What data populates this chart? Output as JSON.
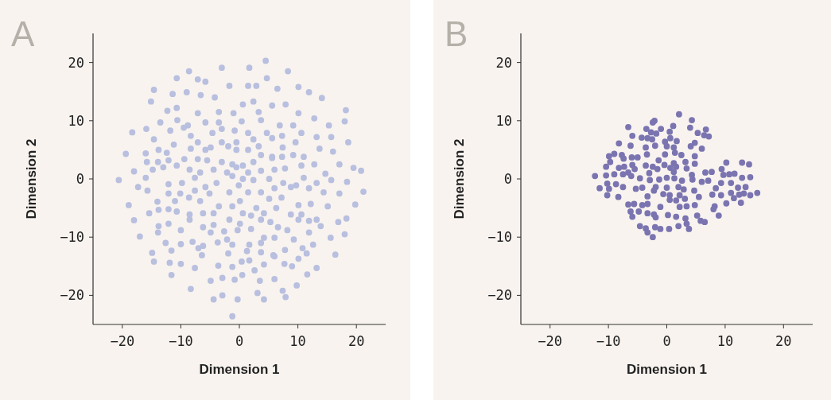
{
  "chart_data": [
    {
      "type": "scatter",
      "title": "A",
      "xlabel": "Dimension 1",
      "ylabel": "Dimension 2",
      "xlim": [
        -25,
        25
      ],
      "ylim": [
        -25,
        25
      ],
      "marker": "circle",
      "xticks": [
        -20,
        -10,
        0,
        10,
        20
      ],
      "yticks": [
        -20,
        -10,
        0,
        10,
        20
      ],
      "series": [
        {
          "color": "#b8bfdf",
          "x": [
            4.5,
            -3.0,
            1.7,
            -8.6,
            8.3,
            -10.7,
            -7.1,
            -5.8,
            4.7,
            -1.7,
            1.5,
            2.9,
            6.5,
            -14.6,
            10.1,
            11.9,
            14.1,
            -9.0,
            -6.6,
            -11.4,
            -15.1,
            -4.2,
            0.6,
            2.4,
            5.6,
            7.9,
            -12.3,
            -10.7,
            -7.1,
            -3.5,
            -1.0,
            3.3,
            10.1,
            12.8,
            18.2,
            -13.5,
            -10.6,
            -8.8,
            -5.8,
            -3.5,
            0.4,
            3.7,
            6.9,
            9.2,
            15.3,
            18.0,
            -18.3,
            -15.9,
            -11.8,
            -9.5,
            -4.6,
            -3.0,
            -0.8,
            1.5,
            4.7,
            7.3,
            10.6,
            13.2,
            15.7,
            -14.6,
            -11.2,
            -8.3,
            -7.1,
            -3.0,
            -0.5,
            2.4,
            5.6,
            9.6,
            18.6,
            -19.4,
            -16.0,
            -13.8,
            -12.4,
            -8.3,
            -5.8,
            -4.9,
            -1.9,
            -0.5,
            1.5,
            3.3,
            5.6,
            7.4,
            9.2,
            11.0,
            13.7,
            16.0,
            -15.8,
            -13.9,
            -12.1,
            -9.4,
            -7.1,
            -5.5,
            -3.0,
            -1.2,
            0.6,
            2.4,
            3.7,
            5.6,
            7.3,
            12.8,
            17.1,
            -18.0,
            -14.8,
            -13.0,
            -10.7,
            -8.5,
            -6.7,
            -4.4,
            -2.1,
            -0.5,
            1.5,
            3.7,
            6.0,
            7.8,
            10.6,
            14.7,
            19.5,
            20.8,
            -20.6,
            -16.0,
            -12.1,
            -9.8,
            -7.6,
            -5.8,
            -3.9,
            -1.2,
            0.6,
            2.4,
            5.1,
            7.5,
            9.7,
            11.0,
            13.2,
            15.7,
            18.4,
            -17.3,
            -15.7,
            -12.1,
            -10.1,
            -7.6,
            -5.1,
            -1.7,
            -0.1,
            1.5,
            3.7,
            6.0,
            8.8,
            11.9,
            14.4,
            17.1,
            21.2,
            -18.9,
            -14.0,
            -11.0,
            -8.6,
            -6.7,
            -3.5,
            -1.2,
            0.1,
            2.9,
            5.1,
            7.2,
            10.1,
            12.2,
            15.1,
            19.8,
            -15.4,
            -13.8,
            -12.1,
            -10.7,
            -8.5,
            -6.2,
            -4.4,
            0.6,
            2.0,
            4.2,
            6.3,
            8.8,
            10.6,
            13.2,
            16.9,
            18.3,
            -18.0,
            -13.8,
            -12.1,
            -8.5,
            -6.2,
            -4.4,
            -2.6,
            -1.7,
            0.1,
            2.0,
            3.7,
            5.3,
            6.6,
            8.2,
            10.1,
            11.9,
            13.9,
            -17.0,
            -13.9,
            -10.0,
            -4.9,
            -0.3,
            4.2,
            6.0,
            9.3,
            11.9,
            15.6,
            18.0,
            -12.6,
            -10.0,
            -8.0,
            -6.2,
            -3.7,
            -2.1,
            -1.2,
            1.7,
            3.7,
            7.8,
            10.8,
            12.6,
            -14.9,
            -11.6,
            -7.0,
            -6.4,
            -1.9,
            1.3,
            3.7,
            5.8,
            11.5,
            16.4,
            -14.6,
            -11.9,
            -10.0,
            -7.6,
            -3.6,
            -1.2,
            0.4,
            1.7,
            2.6,
            4.2,
            6.0,
            7.7,
            9.0,
            10.1,
            13.2,
            -11.6,
            -4.9,
            -2.9,
            -0.8,
            0.5,
            3.5,
            6.0,
            11.6,
            -8.3,
            9.8,
            -4.4,
            -2.9,
            -0.3,
            3.1,
            4.2,
            7.4,
            7.9,
            -1.2
          ],
          "values": [
            20.3,
            19.1,
            19.1,
            18.5,
            18.5,
            17.3,
            17.1,
            16.7,
            17.3,
            16.0,
            16.0,
            16.0,
            15.5,
            15.3,
            15.8,
            14.9,
            13.9,
            14.9,
            14.4,
            14.6,
            13.3,
            14.0,
            12.8,
            13.3,
            12.6,
            12.8,
            11.7,
            12.2,
            11.3,
            11.5,
            11.3,
            11.5,
            11.3,
            10.4,
            11.8,
            9.7,
            10.1,
            9.2,
            9.7,
            9.7,
            9.9,
            10.1,
            9.2,
            9.2,
            9.2,
            9.9,
            8.0,
            8.6,
            8.3,
            8.8,
            7.9,
            8.6,
            8.3,
            7.9,
            7.9,
            7.4,
            7.9,
            7.2,
            7.2,
            6.8,
            5.9,
            7.4,
            6.3,
            6.3,
            6.3,
            6.8,
            7.0,
            6.3,
            6.3,
            4.3,
            4.4,
            5.0,
            4.5,
            5.2,
            5.0,
            5.4,
            5.6,
            5.0,
            5.0,
            5.6,
            3.8,
            5.4,
            4.1,
            3.8,
            5.2,
            4.7,
            2.9,
            2.9,
            3.2,
            3.4,
            3.4,
            3.2,
            2.9,
            2.5,
            2.3,
            2.9,
            4.1,
            3.6,
            3.8,
            2.5,
            2.5,
            1.3,
            1.6,
            2.0,
            2.3,
            1.6,
            1.1,
            1.6,
            1.1,
            2.0,
            1.1,
            1.4,
            1.6,
            1.8,
            2.3,
            0.9,
            1.9,
            1.4,
            -0.2,
            0.2,
            -0.9,
            -0.7,
            0.2,
            -1.4,
            -0.7,
            0.5,
            0.0,
            -0.2,
            0.0,
            -0.7,
            -1.1,
            0.2,
            -0.7,
            -0.2,
            -0.5,
            -1.4,
            -2.0,
            -2.5,
            -2.5,
            -2.0,
            -2.5,
            -2.3,
            -1.1,
            -2.3,
            -2.3,
            -1.6,
            -1.4,
            -1.6,
            -2.3,
            -2.5,
            -2.2,
            -4.5,
            -3.9,
            -3.8,
            -3.2,
            -3.8,
            -4.7,
            -4.7,
            -3.8,
            -5.0,
            -3.4,
            -3.2,
            -4.5,
            -4.3,
            -4.7,
            -4.4,
            -5.9,
            -5.3,
            -5.2,
            -5.6,
            -6.1,
            -5.9,
            -5.9,
            -5.9,
            -6.3,
            -5.9,
            -5.0,
            -6.1,
            -6.1,
            -7.0,
            -7.4,
            -6.8,
            -7.1,
            -8.1,
            -7.7,
            -7.0,
            -8.3,
            -7.9,
            -9.0,
            -7.0,
            -7.7,
            -8.6,
            -7.0,
            -7.4,
            -8.3,
            -8.8,
            -7.0,
            -7.2,
            -8.1,
            -9.9,
            -9.2,
            -8.8,
            -9.2,
            -8.8,
            -10.1,
            -10.1,
            -10.4,
            -9.2,
            -10.1,
            -9.5,
            -11.0,
            -11.2,
            -10.8,
            -11.5,
            -10.9,
            -10.4,
            -11.3,
            -11.3,
            -11.0,
            -12.2,
            -11.9,
            -11.3,
            -12.7,
            -12.3,
            -11.9,
            -13.1,
            -12.8,
            -12.4,
            -12.6,
            -13.1,
            -12.8,
            -13.0,
            -14.2,
            -14.4,
            -14.6,
            -15.3,
            -14.9,
            -15.1,
            -14.2,
            -14.0,
            -15.7,
            -14.7,
            -13.3,
            -14.6,
            -15.0,
            -13.7,
            -15.3,
            -16.5,
            -17.5,
            -17.0,
            -17.3,
            -16.5,
            -17.5,
            -17.2,
            -16.4,
            -18.9,
            -18.3,
            -20.7,
            -20.0,
            -20.7,
            -19.6,
            -20.7,
            -19.2,
            -20.3,
            -23.6
          ]
        }
      ]
    },
    {
      "type": "scatter",
      "title": "B",
      "xlabel": "Dimension 1",
      "ylabel": "Dimension 2",
      "xlim": [
        -25,
        25
      ],
      "ylim": [
        -25,
        25
      ],
      "marker": "circle",
      "xticks": [
        -20,
        -10,
        0,
        10,
        20
      ],
      "yticks": [
        -20,
        -10,
        0,
        10,
        20
      ],
      "series": [
        {
          "color": "#7a74b0",
          "x": [
            2.1,
            -2.1,
            -2.4,
            4.3,
            -6.6,
            -3.5,
            -1.0,
            1.1,
            4.0,
            6.7,
            -2.7,
            -1.8,
            0.5,
            5.3,
            6.4,
            7.2,
            -5.9,
            -4.3,
            -3.3,
            0.6,
            1.7,
            -8.2,
            -6.2,
            -2.5,
            -0.3,
            0.0,
            1.2,
            4.1,
            4.8,
            6.0,
            -3.6,
            -2.0,
            -9.9,
            -9.0,
            -7.7,
            -6.0,
            -5.0,
            -3.4,
            -0.3,
            1.4,
            2.5,
            4.8,
            -7.4,
            -1.4,
            -10.4,
            -9.7,
            -8.2,
            -7.3,
            -5.9,
            -5.5,
            -3.6,
            -2.4,
            -1.6,
            -0.4,
            0.6,
            1.6,
            1.2,
            3.2,
            3.4,
            4.8,
            10.2,
            12.9,
            14.1,
            -12.3,
            -10.4,
            -9.0,
            -7.5,
            -6.6,
            -6.1,
            -4.6,
            -3.0,
            -2.9,
            -1.3,
            0.0,
            1.2,
            1.3,
            2.6,
            4.3,
            4.4,
            6.0,
            6.6,
            7.7,
            7.1,
            9.4,
            9.7,
            10.7,
            11.6,
            12.9,
            14.3,
            -10.2,
            -8.7,
            -11.5,
            -9.9,
            -7.5,
            -5.3,
            -4.2,
            -1.9,
            0.0,
            2.0,
            2.9,
            4.7,
            8.4,
            9.3,
            11.0,
            12.2,
            13.5,
            -10.2,
            -8.3,
            -3.3,
            -2.2,
            -0.6,
            0.5,
            2.2,
            3.1,
            5.5,
            7.8,
            9.3,
            11.0,
            12.4,
            13.2,
            14.3,
            15.5,
            -6.6,
            -5.6,
            -4.2,
            -3.3,
            0.5,
            1.6,
            3.4,
            4.8,
            10.2,
            11.5,
            12.7,
            -6.2,
            -4.8,
            -3.3,
            -2.2,
            -1.1,
            0.2,
            2.2,
            1.6,
            8.2,
            8.0,
            8.9,
            -5.9,
            -1.9,
            3.2,
            5.2,
            5.8,
            6.5,
            3.4,
            -4.6,
            -3.6,
            -2.0,
            -1.1,
            0.4,
            2.0,
            3.8,
            -3.3,
            -2.4
          ],
          "values": [
            11.1,
            10.0,
            9.7,
            10.1,
            8.9,
            8.6,
            8.6,
            9.1,
            8.8,
            8.5,
            8.0,
            7.8,
            8.1,
            7.9,
            7.5,
            7.3,
            7.4,
            7.1,
            7.0,
            7.0,
            6.5,
            6.1,
            5.7,
            6.8,
            6.4,
            5.6,
            5.4,
            5.6,
            6.2,
            5.2,
            5.4,
            5.7,
            3.9,
            4.3,
            4.1,
            3.7,
            3.7,
            4.2,
            4.2,
            4.5,
            4.1,
            3.9,
            3.5,
            3.2,
            2.1,
            2.9,
            1.9,
            2.1,
            2.4,
            1.7,
            2.3,
            2.1,
            1.7,
            2.4,
            1.9,
            2.1,
            2.7,
            2.9,
            1.8,
            2.6,
            2.8,
            2.8,
            2.5,
            0.5,
            0.6,
            0.8,
            0.8,
            1.1,
            0.5,
            0.1,
            1.0,
            -0.2,
            -0.1,
            0.2,
            1.2,
            0.1,
            -0.3,
            0.7,
            -0.1,
            -0.5,
            1.1,
            1.2,
            -0.3,
            1.7,
            0.7,
            0.8,
            0.9,
            0.2,
            0.3,
            -0.8,
            -0.9,
            -1.6,
            -1.7,
            -1.4,
            -1.7,
            -1.5,
            -1.4,
            -1.5,
            -1.4,
            -1.8,
            -2.0,
            -1.6,
            -0.7,
            -0.7,
            -1.5,
            -1.4,
            -2.8,
            -3.1,
            -3.0,
            -2.0,
            -2.6,
            -2.8,
            -2.8,
            -3.4,
            -3.1,
            -2.7,
            -2.8,
            -2.4,
            -2.7,
            -2.5,
            -2.8,
            -2.4,
            -4.4,
            -4.3,
            -4.5,
            -4.3,
            -3.6,
            -3.7,
            -4.7,
            -4.5,
            -4.2,
            -3.3,
            -4.1,
            -5.6,
            -5.6,
            -5.9,
            -6.1,
            -4.8,
            -6.2,
            -4.8,
            -6.5,
            -4.7,
            -5.2,
            -6.3,
            -6.5,
            -6.6,
            -6.8,
            -6.3,
            -7.2,
            -7.4,
            -7.7,
            -8.1,
            -8.5,
            -8.3,
            -8.6,
            -8.6,
            -8.1,
            -8.6,
            -9.2,
            -10.0
          ]
        }
      ]
    }
  ]
}
